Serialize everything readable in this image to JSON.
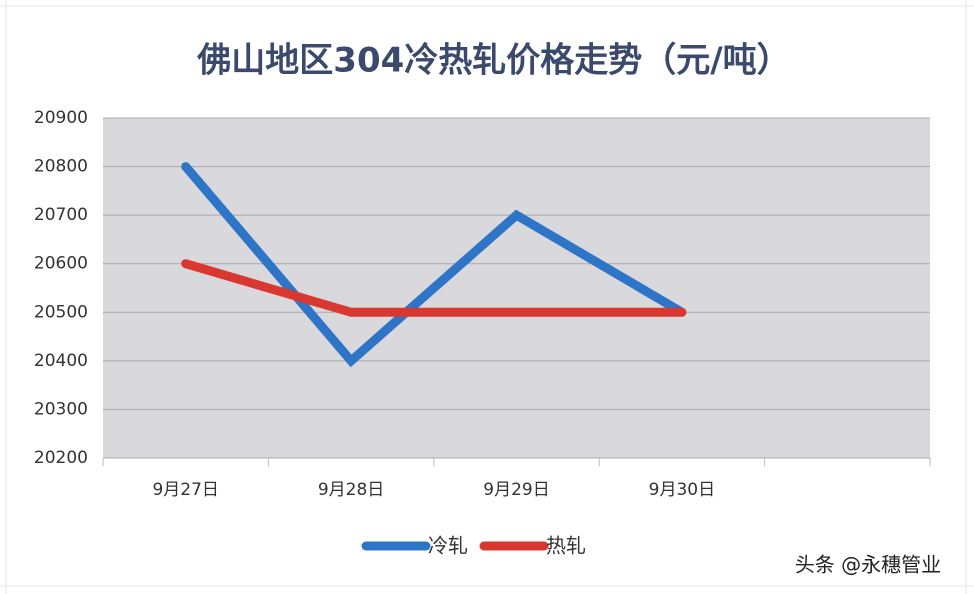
{
  "chart_data": {
    "type": "line",
    "title": "佛山地区304冷热轧价格走势（元/吨）",
    "categories": [
      "9月27日",
      "9月28日",
      "9月29日",
      "9月30日",
      null
    ],
    "series": [
      {
        "name": "冷轧",
        "color": "#2e75c7",
        "values": [
          20800,
          20400,
          20700,
          20500,
          null
        ]
      },
      {
        "name": "热轧",
        "color": "#d8382f",
        "values": [
          20600,
          20500,
          20500,
          20500,
          null
        ]
      }
    ],
    "ylim": [
      20200,
      20900
    ],
    "yticks": [
      20200,
      20300,
      20400,
      20500,
      20600,
      20700,
      20800,
      20900
    ],
    "grid": true,
    "legend": "bottom"
  },
  "watermark": "头条 @永穗管业"
}
